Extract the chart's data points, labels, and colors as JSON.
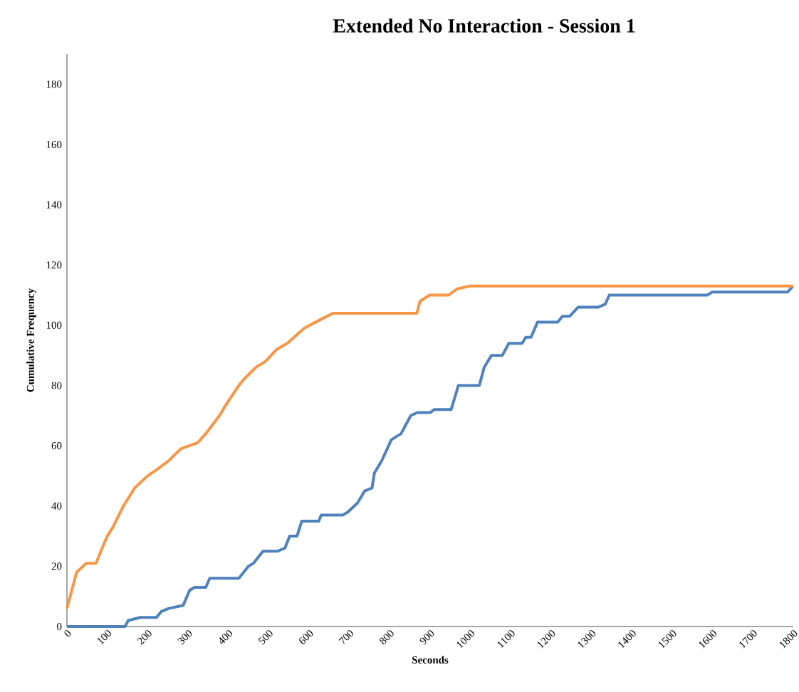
{
  "chart_data": {
    "type": "line",
    "title": "Extended No Interaction - Session 1",
    "xlabel": "Seconds",
    "ylabel": "Cumulative Frequency",
    "xlim": [
      0,
      1800
    ],
    "ylim": [
      0,
      190
    ],
    "xticks": [
      0,
      100,
      200,
      300,
      400,
      500,
      600,
      700,
      800,
      900,
      1000,
      1100,
      1200,
      1300,
      1400,
      1500,
      1600,
      1700,
      1800
    ],
    "yticks": [
      0,
      20,
      40,
      60,
      80,
      100,
      120,
      140,
      160,
      180
    ],
    "grid": false,
    "marker": "none",
    "line_style": "solid",
    "series": [
      {
        "color": "#4f81bd",
        "x": [
          0,
          144,
          152,
          182,
          222,
          234,
          252,
          288,
          304,
          316,
          344,
          354,
          426,
          450,
          462,
          486,
          522,
          540,
          552,
          570,
          582,
          624,
          630,
          684,
          696,
          720,
          738,
          756,
          762,
          780,
          804,
          828,
          852,
          868,
          900,
          910,
          952,
          970,
          1022,
          1034,
          1052,
          1079,
          1095,
          1128,
          1137,
          1150,
          1166,
          1216,
          1228,
          1246,
          1267,
          1317,
          1334,
          1344,
          1587,
          1599,
          1786,
          1799
        ],
        "values": [
          0,
          0,
          2,
          3,
          3,
          5,
          6,
          7,
          12,
          13,
          13,
          16,
          16,
          20,
          21,
          25,
          25,
          26,
          30,
          30,
          35,
          35,
          37,
          37,
          38,
          41,
          45,
          46,
          51,
          55,
          62,
          64,
          70,
          71,
          71,
          72,
          72,
          80,
          80,
          86,
          90,
          90,
          94,
          94,
          96,
          96,
          101,
          101,
          103,
          103,
          106,
          106,
          107,
          110,
          110,
          111,
          111,
          113
        ]
      },
      {
        "color": "#f79646",
        "x": [
          0,
          24,
          48,
          72,
          84,
          100,
          114,
          140,
          168,
          184,
          200,
          222,
          252,
          282,
          324,
          344,
          378,
          396,
          426,
          438,
          468,
          492,
          520,
          546,
          588,
          630,
          660,
          867,
          875,
          899,
          946,
          966,
          997,
          1800
        ],
        "values": [
          6,
          18,
          21,
          21,
          25,
          30,
          33,
          40,
          46,
          48,
          50,
          52,
          55,
          59,
          61,
          64,
          70,
          74,
          80,
          82,
          86,
          88,
          92,
          94,
          99,
          102,
          104,
          104,
          108,
          110,
          110,
          112,
          113,
          113
        ]
      }
    ]
  }
}
